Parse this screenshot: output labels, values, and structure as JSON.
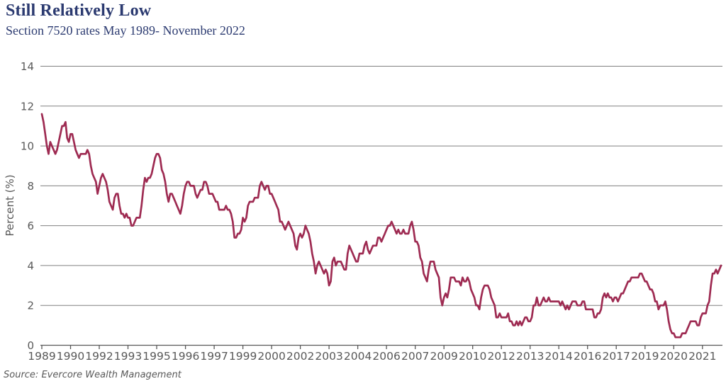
{
  "source": {
    "text": "Source: Evercore Wealth Management"
  },
  "colors": {
    "line": "#9e2b52",
    "title_navy": "#2b3a70",
    "axis_text": "#595959",
    "axis_line": "#595959",
    "gridline": "#808080",
    "background": "#ffffff"
  },
  "chart_data": {
    "type": "line",
    "title": "Still Relatively Low",
    "subtitle": "Section 7520 rates May 1989- November 2022",
    "ylabel": "Percent (%)",
    "ylim": [
      0,
      14
    ],
    "y_ticks": [
      0,
      2,
      4,
      6,
      8,
      10,
      12,
      14
    ],
    "grid": "horizontal",
    "legend": "none",
    "x_tick_interval_points": 17,
    "x_tick_labels": [
      "1989",
      "1990",
      "1992",
      "1993",
      "1995",
      "1996",
      "1997",
      "1999",
      "2000",
      "2002",
      "2003",
      "2004",
      "2006",
      "2007",
      "2009",
      "2010",
      "2012",
      "2013",
      "2014",
      "2016",
      "2017",
      "2019",
      "2020",
      "2021"
    ],
    "series": [
      {
        "name": "Section 7520 rate",
        "frequency": "monthly",
        "start": "May 1989",
        "end": "November 2022",
        "values": [
          11.6,
          11.2,
          10.6,
          10.0,
          9.6,
          10.2,
          10.0,
          9.8,
          9.6,
          9.8,
          10.2,
          10.6,
          11.0,
          11.0,
          11.2,
          10.4,
          10.2,
          10.6,
          10.6,
          10.2,
          9.8,
          9.6,
          9.4,
          9.6,
          9.6,
          9.6,
          9.6,
          9.8,
          9.6,
          9.0,
          8.6,
          8.4,
          8.2,
          7.6,
          8.0,
          8.4,
          8.6,
          8.4,
          8.2,
          7.8,
          7.2,
          7.0,
          6.8,
          7.4,
          7.6,
          7.6,
          7.0,
          6.6,
          6.6,
          6.4,
          6.6,
          6.4,
          6.4,
          6.0,
          6.0,
          6.2,
          6.4,
          6.4,
          6.4,
          7.0,
          7.8,
          8.4,
          8.2,
          8.4,
          8.4,
          8.6,
          9.0,
          9.4,
          9.6,
          9.6,
          9.4,
          8.8,
          8.6,
          8.2,
          7.6,
          7.2,
          7.6,
          7.6,
          7.4,
          7.2,
          7.0,
          6.8,
          6.6,
          7.0,
          7.6,
          8.0,
          8.2,
          8.2,
          8.0,
          8.0,
          8.0,
          7.6,
          7.4,
          7.6,
          7.8,
          7.8,
          8.2,
          8.2,
          8.0,
          7.6,
          7.6,
          7.6,
          7.4,
          7.2,
          7.2,
          6.8,
          6.8,
          6.8,
          6.8,
          7.0,
          6.8,
          6.8,
          6.6,
          6.2,
          5.4,
          5.4,
          5.6,
          5.6,
          5.8,
          6.4,
          6.2,
          6.4,
          7.0,
          7.2,
          7.2,
          7.2,
          7.4,
          7.4,
          7.4,
          8.0,
          8.2,
          8.0,
          7.8,
          8.0,
          8.0,
          7.6,
          7.6,
          7.4,
          7.2,
          7.0,
          6.8,
          6.2,
          6.2,
          6.0,
          5.8,
          6.0,
          6.2,
          6.0,
          5.8,
          5.6,
          5.0,
          4.8,
          5.4,
          5.6,
          5.4,
          5.6,
          6.0,
          5.8,
          5.6,
          5.2,
          4.6,
          4.2,
          3.6,
          4.0,
          4.2,
          4.0,
          3.8,
          3.6,
          3.8,
          3.6,
          3.0,
          3.2,
          4.2,
          4.4,
          4.0,
          4.2,
          4.2,
          4.2,
          4.0,
          3.8,
          3.8,
          4.6,
          5.0,
          4.8,
          4.6,
          4.4,
          4.2,
          4.2,
          4.6,
          4.6,
          4.6,
          5.0,
          5.2,
          4.8,
          4.6,
          4.8,
          5.0,
          5.0,
          5.0,
          5.4,
          5.4,
          5.2,
          5.4,
          5.6,
          5.8,
          6.0,
          6.0,
          6.2,
          6.0,
          5.8,
          5.6,
          5.8,
          5.6,
          5.6,
          5.8,
          5.6,
          5.6,
          5.6,
          6.0,
          6.2,
          5.8,
          5.2,
          5.2,
          5.0,
          4.4,
          4.2,
          3.6,
          3.4,
          3.2,
          3.8,
          4.2,
          4.2,
          4.2,
          3.8,
          3.6,
          3.4,
          2.4,
          2.0,
          2.4,
          2.6,
          2.4,
          2.8,
          3.4,
          3.4,
          3.4,
          3.2,
          3.2,
          3.2,
          3.0,
          3.4,
          3.2,
          3.2,
          3.4,
          3.2,
          2.8,
          2.6,
          2.4,
          2.0,
          2.0,
          1.8,
          2.4,
          2.8,
          3.0,
          3.0,
          3.0,
          2.8,
          2.4,
          2.2,
          2.0,
          1.4,
          1.4,
          1.6,
          1.4,
          1.4,
          1.4,
          1.4,
          1.6,
          1.2,
          1.2,
          1.0,
          1.0,
          1.2,
          1.0,
          1.2,
          1.0,
          1.2,
          1.4,
          1.4,
          1.2,
          1.2,
          1.4,
          2.0,
          2.0,
          2.4,
          2.0,
          2.0,
          2.2,
          2.4,
          2.2,
          2.2,
          2.4,
          2.2,
          2.2,
          2.2,
          2.2,
          2.2,
          2.2,
          2.0,
          2.2,
          2.0,
          1.8,
          2.0,
          1.8,
          2.0,
          2.2,
          2.2,
          2.2,
          2.0,
          2.0,
          2.0,
          2.2,
          2.2,
          1.8,
          1.8,
          1.8,
          1.8,
          1.8,
          1.4,
          1.4,
          1.6,
          1.6,
          1.8,
          2.4,
          2.6,
          2.4,
          2.6,
          2.4,
          2.4,
          2.2,
          2.4,
          2.4,
          2.2,
          2.4,
          2.6,
          2.6,
          2.8,
          3.0,
          3.2,
          3.2,
          3.4,
          3.4,
          3.4,
          3.4,
          3.4,
          3.6,
          3.6,
          3.4,
          3.2,
          3.2,
          3.0,
          2.8,
          2.8,
          2.6,
          2.2,
          2.2,
          1.8,
          2.0,
          2.0,
          2.0,
          2.2,
          1.8,
          1.2,
          0.8,
          0.6,
          0.6,
          0.4,
          0.4,
          0.4,
          0.4,
          0.6,
          0.6,
          0.6,
          0.8,
          1.0,
          1.2,
          1.2,
          1.2,
          1.2,
          1.0,
          1.0,
          1.4,
          1.6,
          1.6,
          1.6,
          2.0,
          2.2,
          3.0,
          3.6,
          3.6,
          3.8,
          3.6,
          3.8,
          4.0
        ]
      }
    ]
  }
}
